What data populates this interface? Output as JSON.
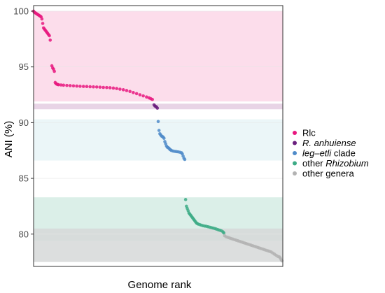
{
  "chart_data": {
    "type": "scatter",
    "title": "",
    "xlabel": "Genome rank",
    "ylabel": "ANI (%)",
    "ylim": [
      77.1,
      100.5
    ],
    "xlim": [
      0,
      300
    ],
    "yticks": [
      80,
      85,
      90,
      95,
      100
    ],
    "grid": true,
    "legend_position": "right",
    "bands": [
      {
        "series": "Rlc",
        "ymin": 91.9,
        "ymax": 100.0,
        "color": "#fcd7e8"
      },
      {
        "series": "R. anhuiense",
        "ymin": 91.2,
        "ymax": 91.7,
        "color": "#e4cde2"
      },
      {
        "series": "leg-etli clade",
        "ymin": 86.6,
        "ymax": 90.3,
        "color": "#e7f4f7"
      },
      {
        "series": "other Rhizobium",
        "ymin": 79.4,
        "ymax": 83.3,
        "color": "#d5ece4"
      },
      {
        "series": "other genera",
        "ymin": 77.5,
        "ymax": 80.5,
        "color": "#d6d8d8"
      }
    ],
    "series": [
      {
        "name": "Rlc",
        "label_parts": [
          {
            "text": "Rlc",
            "italic": false
          }
        ],
        "color": "#e8177f",
        "points": [
          [
            0,
            100.0
          ],
          [
            1,
            99.9
          ],
          [
            2,
            99.85
          ],
          [
            3,
            99.8
          ],
          [
            4,
            99.75
          ],
          [
            5,
            99.7
          ],
          [
            6,
            99.65
          ],
          [
            7,
            99.6
          ],
          [
            8,
            99.55
          ],
          [
            9,
            99.5
          ],
          [
            10,
            99.3
          ],
          [
            11,
            98.9
          ],
          [
            12,
            98.5
          ],
          [
            13,
            98.4
          ],
          [
            14,
            98.3
          ],
          [
            15,
            98.2
          ],
          [
            16,
            98.1
          ],
          [
            17,
            98.0
          ],
          [
            18,
            97.9
          ],
          [
            19,
            97.8
          ],
          [
            20,
            97.4
          ],
          [
            22,
            95.1
          ],
          [
            23,
            94.9
          ],
          [
            24,
            94.8
          ],
          [
            25,
            94.6
          ],
          [
            26,
            93.6
          ],
          [
            27,
            93.5
          ],
          [
            28,
            93.45
          ],
          [
            29,
            93.42
          ],
          [
            30,
            93.4
          ],
          [
            33,
            93.38
          ],
          [
            36,
            93.36
          ],
          [
            40,
            93.34
          ],
          [
            44,
            93.32
          ],
          [
            48,
            93.3
          ],
          [
            52,
            93.28
          ],
          [
            56,
            93.26
          ],
          [
            60,
            93.25
          ],
          [
            64,
            93.24
          ],
          [
            68,
            93.22
          ],
          [
            72,
            93.21
          ],
          [
            76,
            93.2
          ],
          [
            80,
            93.18
          ],
          [
            84,
            93.16
          ],
          [
            88,
            93.15
          ],
          [
            92,
            93.13
          ],
          [
            96,
            93.1
          ],
          [
            100,
            93.06
          ],
          [
            104,
            93.0
          ],
          [
            108,
            92.95
          ],
          [
            112,
            92.88
          ],
          [
            116,
            92.8
          ],
          [
            120,
            92.7
          ],
          [
            124,
            92.6
          ],
          [
            128,
            92.5
          ],
          [
            132,
            92.4
          ],
          [
            136,
            92.3
          ],
          [
            139,
            92.22
          ],
          [
            141,
            92.15
          ],
          [
            143,
            92.08
          ]
        ]
      },
      {
        "name": "R. anhuiense",
        "label_parts": [
          {
            "text": "R. anhuiense",
            "italic": true
          }
        ],
        "color": "#6a1f7e",
        "points": [
          [
            145,
            91.6
          ],
          [
            146,
            91.5
          ],
          [
            147,
            91.45
          ],
          [
            148,
            91.4
          ],
          [
            149,
            91.3
          ]
        ]
      },
      {
        "name": "leg-etli clade",
        "label_parts": [
          {
            "text": "leg–etli",
            "italic": true
          },
          {
            "text": " clade",
            "italic": false
          }
        ],
        "color": "#4f8bc9",
        "points": [
          [
            150,
            90.1
          ],
          [
            151,
            89.3
          ],
          [
            152,
            89.0
          ],
          [
            153,
            88.9
          ],
          [
            154,
            88.8
          ],
          [
            155,
            88.75
          ],
          [
            156,
            88.7
          ],
          [
            157,
            88.6
          ],
          [
            158,
            88.3
          ],
          [
            159,
            88.1
          ],
          [
            160,
            87.9
          ],
          [
            161,
            87.8
          ],
          [
            162,
            87.75
          ],
          [
            163,
            87.7
          ],
          [
            164,
            87.6
          ],
          [
            165,
            87.55
          ],
          [
            166,
            87.5
          ],
          [
            168,
            87.45
          ],
          [
            170,
            87.42
          ],
          [
            172,
            87.4
          ],
          [
            174,
            87.38
          ],
          [
            176,
            87.35
          ],
          [
            178,
            87.3
          ],
          [
            179,
            87.2
          ],
          [
            180,
            87.0
          ],
          [
            181,
            86.8
          ],
          [
            182,
            86.7
          ]
        ]
      },
      {
        "name": "other Rhizobium",
        "label_parts": [
          {
            "text": "other ",
            "italic": false
          },
          {
            "text": "Rhizobium",
            "italic": true
          }
        ],
        "color": "#3dab86",
        "points": [
          [
            183,
            83.1
          ],
          [
            184,
            82.5
          ],
          [
            185,
            82.3
          ],
          [
            186,
            82.1
          ],
          [
            187,
            81.9
          ],
          [
            188,
            81.8
          ],
          [
            189,
            81.7
          ],
          [
            190,
            81.6
          ],
          [
            191,
            81.5
          ],
          [
            192,
            81.4
          ],
          [
            193,
            81.3
          ],
          [
            194,
            81.2
          ],
          [
            195,
            81.1
          ],
          [
            196,
            81.0
          ],
          [
            197,
            80.95
          ],
          [
            198,
            80.9
          ],
          [
            200,
            80.85
          ],
          [
            202,
            80.8
          ],
          [
            204,
            80.75
          ],
          [
            206,
            80.72
          ],
          [
            208,
            80.7
          ],
          [
            210,
            80.66
          ],
          [
            212,
            80.62
          ],
          [
            214,
            80.58
          ],
          [
            216,
            80.54
          ],
          [
            218,
            80.5
          ],
          [
            220,
            80.45
          ],
          [
            222,
            80.4
          ],
          [
            224,
            80.35
          ],
          [
            226,
            80.3
          ],
          [
            228,
            80.2
          ],
          [
            229,
            80.1
          ]
        ]
      },
      {
        "name": "other genera",
        "label_parts": [
          {
            "text": "other genera",
            "italic": false
          }
        ],
        "color": "#b3b3b3",
        "points": [
          [
            230,
            79.85
          ],
          [
            232,
            79.75
          ],
          [
            234,
            79.7
          ],
          [
            236,
            79.65
          ],
          [
            238,
            79.6
          ],
          [
            240,
            79.55
          ],
          [
            242,
            79.5
          ],
          [
            244,
            79.45
          ],
          [
            246,
            79.4
          ],
          [
            248,
            79.35
          ],
          [
            250,
            79.3
          ],
          [
            252,
            79.25
          ],
          [
            254,
            79.2
          ],
          [
            256,
            79.15
          ],
          [
            258,
            79.1
          ],
          [
            260,
            79.05
          ],
          [
            262,
            79.0
          ],
          [
            264,
            78.95
          ],
          [
            266,
            78.9
          ],
          [
            268,
            78.85
          ],
          [
            270,
            78.8
          ],
          [
            272,
            78.75
          ],
          [
            274,
            78.7
          ],
          [
            276,
            78.65
          ],
          [
            278,
            78.6
          ],
          [
            280,
            78.55
          ],
          [
            282,
            78.5
          ],
          [
            284,
            78.45
          ],
          [
            286,
            78.4
          ],
          [
            288,
            78.3
          ],
          [
            290,
            78.2
          ],
          [
            292,
            78.1
          ],
          [
            294,
            78.0
          ],
          [
            296,
            77.95
          ],
          [
            297,
            77.85
          ],
          [
            298,
            77.7
          ],
          [
            299,
            77.6
          ]
        ]
      }
    ]
  }
}
